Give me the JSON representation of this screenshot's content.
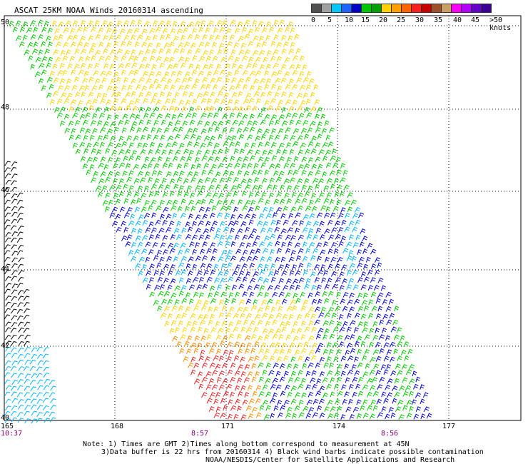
{
  "title": "ASCAT 25KM NOAA Winds 20160314 ascending",
  "colorbar": {
    "colors": [
      "#505050",
      "#a0a0a0",
      "#00c8ff",
      "#1e64ff",
      "#0000c8",
      "#00c800",
      "#00a000",
      "#ffd200",
      "#ffa000",
      "#ff6400",
      "#ff1e1e",
      "#c80000",
      "#a05028",
      "#c8a064",
      "#ff00ff",
      "#b400ff",
      "#6400c8",
      "#3c0096"
    ],
    "labels": [
      "0",
      "5",
      "10",
      "15",
      "20",
      "25",
      "30",
      "35",
      "40",
      "45",
      ">50 knots"
    ]
  },
  "lat_labels": [
    "50",
    "48",
    "46",
    "44",
    "42",
    "40"
  ],
  "lon_labels": [
    "165",
    "168",
    "171",
    "174",
    "177"
  ],
  "times": [
    "10:37",
    "8:57",
    "8:56"
  ],
  "notes": [
    "Note: 1) Times are GMT 2)Times along bottom correspond to measurement at 45N",
    "3)Data buffer is 22 hrs from 20160314 4) Black wind barbs indicate possible contamination",
    "NOAA/NESDIS/Center for Satellite Applications and Research"
  ],
  "barb_colors": {
    "yellow": "#ffd200",
    "green": "#00c800",
    "blue": "#0000d2",
    "cyan": "#00b4ff",
    "orange": "#ff8c00",
    "red": "#e61e1e",
    "black": "#000000"
  }
}
